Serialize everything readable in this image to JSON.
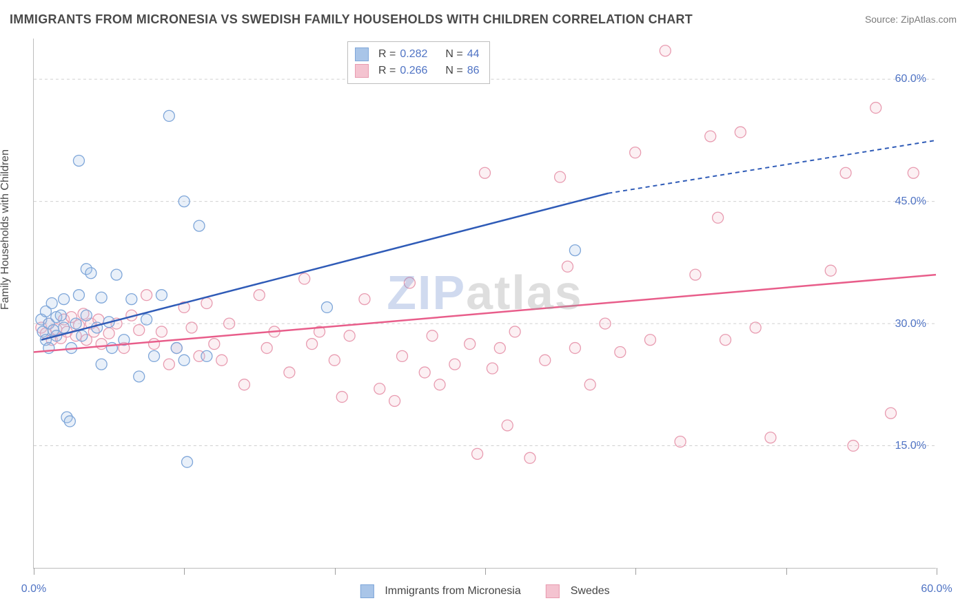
{
  "title": "IMMIGRANTS FROM MICRONESIA VS SWEDISH FAMILY HOUSEHOLDS WITH CHILDREN CORRELATION CHART",
  "source_label": "Source: ZipAtlas.com",
  "y_axis_label": "Family Households with Children",
  "watermark": {
    "a": "ZIP",
    "b": "atlas"
  },
  "chart": {
    "type": "scatter",
    "background_color": "#ffffff",
    "grid_color": "#cfcfcf",
    "axis_color": "#bdbdbd",
    "tick_label_color": "#4f73c4",
    "text_color": "#4a4a4a",
    "xlim": [
      0,
      60
    ],
    "ylim": [
      0,
      65
    ],
    "y_ticks": [
      15,
      30,
      45,
      60
    ],
    "y_tick_labels": [
      "15.0%",
      "30.0%",
      "45.0%",
      "60.0%"
    ],
    "x_ticks": [
      0,
      10,
      20,
      30,
      40,
      50,
      60
    ],
    "x_tick_labels": {
      "0": "0.0%",
      "60": "60.0%"
    },
    "marker_radius": 8,
    "marker_stroke_width": 1.3,
    "marker_fill_opacity": 0.25,
    "trend_line_width": 2.5,
    "trend_dash": "6 5",
    "series": [
      {
        "name": "Immigrants from Micronesia",
        "color_stroke": "#7ea6d9",
        "color_fill": "#a9c5e8",
        "trend_color": "#2f5bb7",
        "r_value": "0.282",
        "n_value": "44",
        "trend": {
          "x1": 0.5,
          "y1": 28.0,
          "x2": 38.2,
          "y2": 46.0,
          "x2_dash": 60.0,
          "y2_dash": 52.5
        },
        "points": [
          [
            0.5,
            30.5
          ],
          [
            0.6,
            29.0
          ],
          [
            0.8,
            31.5
          ],
          [
            0.8,
            28.0
          ],
          [
            1.0,
            30.0
          ],
          [
            1.0,
            27.0
          ],
          [
            1.2,
            32.5
          ],
          [
            1.3,
            29.2
          ],
          [
            1.5,
            30.8
          ],
          [
            1.5,
            28.5
          ],
          [
            1.8,
            31.0
          ],
          [
            2.0,
            29.5
          ],
          [
            2.0,
            33.0
          ],
          [
            2.2,
            18.5
          ],
          [
            2.4,
            18.0
          ],
          [
            2.5,
            27.0
          ],
          [
            2.8,
            30.0
          ],
          [
            3.0,
            33.5
          ],
          [
            3.0,
            50.0
          ],
          [
            3.2,
            28.5
          ],
          [
            3.5,
            31.0
          ],
          [
            3.5,
            36.7
          ],
          [
            3.8,
            36.2
          ],
          [
            4.2,
            29.5
          ],
          [
            4.5,
            33.2
          ],
          [
            4.5,
            25.0
          ],
          [
            5.0,
            30.2
          ],
          [
            5.2,
            27.0
          ],
          [
            5.5,
            36.0
          ],
          [
            6.0,
            28.0
          ],
          [
            6.5,
            33.0
          ],
          [
            7.0,
            23.5
          ],
          [
            7.5,
            30.5
          ],
          [
            8.0,
            26.0
          ],
          [
            8.5,
            33.5
          ],
          [
            9.0,
            55.5
          ],
          [
            9.5,
            27.0
          ],
          [
            10.0,
            25.5
          ],
          [
            10.0,
            45.0
          ],
          [
            10.2,
            13.0
          ],
          [
            11.0,
            42.0
          ],
          [
            11.5,
            26.0
          ],
          [
            19.5,
            32.0
          ],
          [
            36.0,
            39.0
          ]
        ]
      },
      {
        "name": "Swedes",
        "color_stroke": "#e89bb0",
        "color_fill": "#f4c3d0",
        "trend_color": "#e85d8a",
        "r_value": "0.266",
        "n_value": "86",
        "trend": {
          "x1": 0.0,
          "y1": 26.5,
          "x2": 60.0,
          "y2": 36.0
        },
        "points": [
          [
            0.5,
            29.5
          ],
          [
            0.8,
            28.8
          ],
          [
            1.0,
            30.0
          ],
          [
            1.2,
            28.0
          ],
          [
            1.5,
            29.3
          ],
          [
            1.8,
            28.2
          ],
          [
            2.0,
            30.5
          ],
          [
            2.2,
            29.0
          ],
          [
            2.5,
            30.8
          ],
          [
            2.8,
            28.5
          ],
          [
            3.0,
            29.8
          ],
          [
            3.3,
            31.2
          ],
          [
            3.5,
            28.0
          ],
          [
            3.8,
            30.0
          ],
          [
            4.0,
            29.0
          ],
          [
            4.3,
            30.5
          ],
          [
            4.5,
            27.5
          ],
          [
            5.0,
            28.8
          ],
          [
            5.5,
            30.0
          ],
          [
            6.0,
            27.0
          ],
          [
            6.5,
            31.0
          ],
          [
            7.0,
            29.2
          ],
          [
            7.5,
            33.5
          ],
          [
            8.0,
            27.5
          ],
          [
            8.5,
            29.0
          ],
          [
            9.0,
            25.0
          ],
          [
            9.5,
            27.0
          ],
          [
            10.0,
            32.0
          ],
          [
            10.5,
            29.5
          ],
          [
            11.0,
            26.0
          ],
          [
            11.5,
            32.5
          ],
          [
            12.0,
            27.5
          ],
          [
            12.5,
            25.5
          ],
          [
            13.0,
            30.0
          ],
          [
            14.0,
            22.5
          ],
          [
            15.0,
            33.5
          ],
          [
            15.5,
            27.0
          ],
          [
            16.0,
            29.0
          ],
          [
            17.0,
            24.0
          ],
          [
            18.0,
            35.5
          ],
          [
            18.5,
            27.5
          ],
          [
            19.0,
            29.0
          ],
          [
            20.0,
            25.5
          ],
          [
            20.5,
            21.0
          ],
          [
            21.0,
            28.5
          ],
          [
            22.0,
            33.0
          ],
          [
            23.0,
            22.0
          ],
          [
            24.0,
            20.5
          ],
          [
            24.5,
            26.0
          ],
          [
            25.0,
            35.0
          ],
          [
            26.0,
            24.0
          ],
          [
            26.5,
            28.5
          ],
          [
            27.0,
            22.5
          ],
          [
            28.0,
            25.0
          ],
          [
            29.0,
            27.5
          ],
          [
            29.5,
            14.0
          ],
          [
            30.0,
            48.5
          ],
          [
            30.5,
            24.5
          ],
          [
            31.0,
            27.0
          ],
          [
            31.5,
            17.5
          ],
          [
            32.0,
            29.0
          ],
          [
            33.0,
            13.5
          ],
          [
            34.0,
            25.5
          ],
          [
            35.0,
            48.0
          ],
          [
            35.5,
            37.0
          ],
          [
            36.0,
            27.0
          ],
          [
            37.0,
            22.5
          ],
          [
            38.0,
            30.0
          ],
          [
            39.0,
            26.5
          ],
          [
            40.0,
            51.0
          ],
          [
            41.0,
            28.0
          ],
          [
            42.0,
            63.5
          ],
          [
            43.0,
            15.5
          ],
          [
            44.0,
            36.0
          ],
          [
            45.0,
            53.0
          ],
          [
            45.5,
            43.0
          ],
          [
            46.0,
            28.0
          ],
          [
            47.0,
            53.5
          ],
          [
            48.0,
            29.5
          ],
          [
            49.0,
            16.0
          ],
          [
            53.0,
            36.5
          ],
          [
            54.0,
            48.5
          ],
          [
            54.5,
            15.0
          ],
          [
            56.0,
            56.5
          ],
          [
            57.0,
            19.0
          ],
          [
            58.5,
            48.5
          ]
        ]
      }
    ],
    "legend_top": {
      "r_label": "R = ",
      "n_label": "N = "
    },
    "legend_bottom": [
      {
        "label": "Immigrants from Micronesia",
        "fill": "#a9c5e8",
        "stroke": "#7ea6d9"
      },
      {
        "label": "Swedes",
        "fill": "#f4c3d0",
        "stroke": "#e89bb0"
      }
    ]
  }
}
